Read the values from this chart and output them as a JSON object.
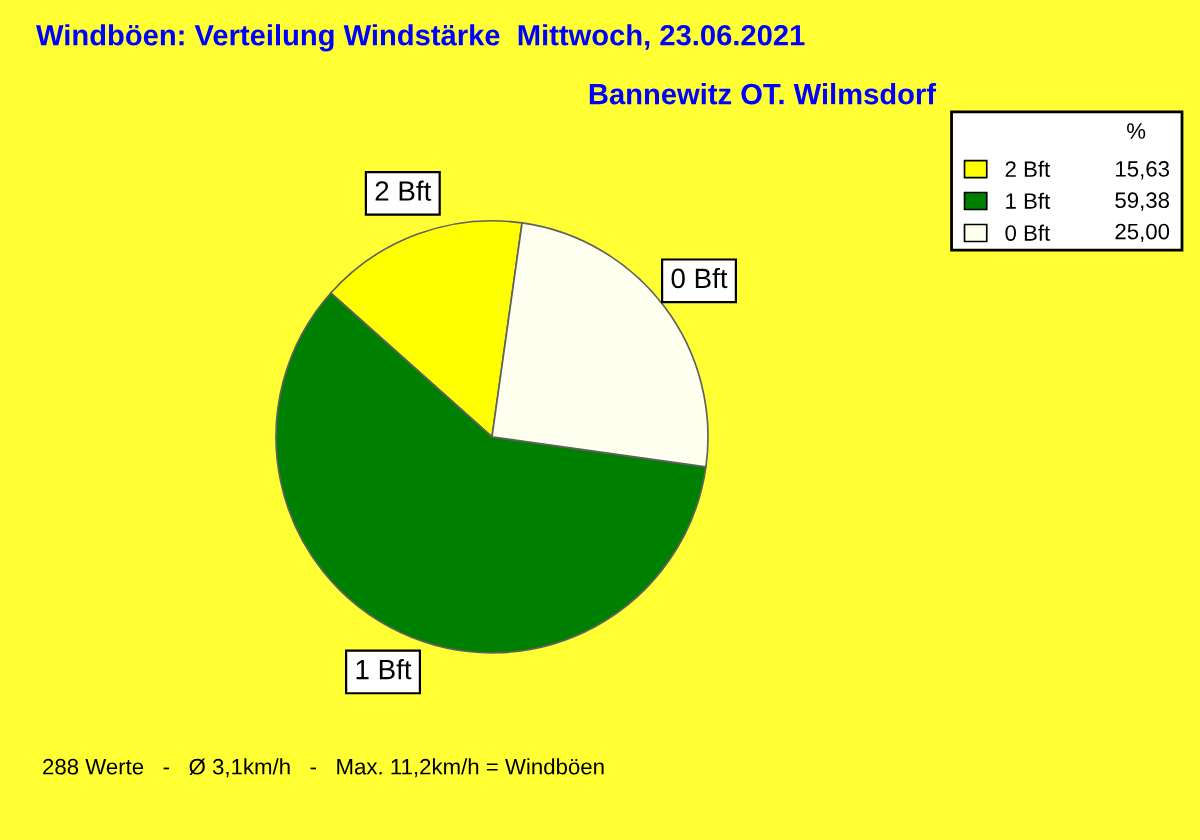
{
  "chart_data": {
    "type": "pie",
    "title": "Windböen: Verteilung Windstärke  Mittwoch, 23.06.2021",
    "subtitle": "Bannewitz OT. Wilmsdorf",
    "categories": [
      "2 Bft",
      "1 Bft",
      "0 Bft"
    ],
    "values": [
      15.63,
      59.38,
      25.0
    ],
    "value_labels": [
      "15,63",
      "59,38",
      "25,00"
    ],
    "colors": [
      "#ffff00",
      "#008000",
      "#fffff0"
    ],
    "legend_title": "%",
    "legend": "top right",
    "annotations": [
      "288 Werte   -   Ø 3,1km/h   -   Max. 11,2km/h = Windböen"
    ]
  }
}
